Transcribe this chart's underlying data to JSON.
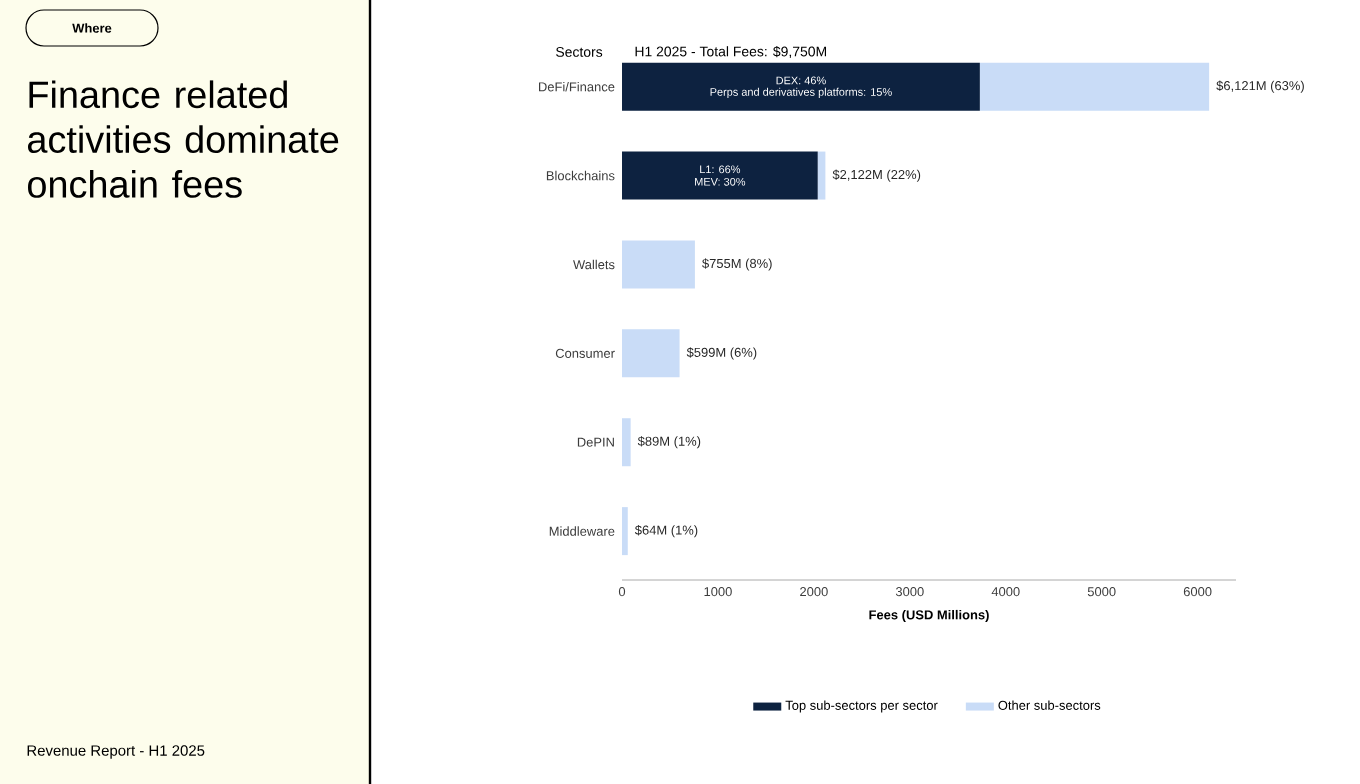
{
  "chart_data": {
    "type": "bar",
    "orientation": "horizontal",
    "stacked": true,
    "title": "Finance related activities dominate onchain fees",
    "subtitle": "H1 2025 - Total Fees: $9,750M",
    "ylabel": "Sectors",
    "xlabel": "Fees (USD Millions)",
    "categories": [
      "DeFi/Finance",
      "Blockchains",
      "Wallets",
      "Consumer",
      "DePIN",
      "Middleware"
    ],
    "series": [
      {
        "name": "Top sub-sectors per sector",
        "color": "#0d2240",
        "values": [
          3730,
          2040,
          0,
          0,
          0,
          0
        ]
      },
      {
        "name": "Other sub-sectors",
        "color": "#c9dcf7",
        "values": [
          2390,
          80,
          760,
          600,
          90,
          60
        ]
      }
    ],
    "totals": [
      "$6,121M (63%)",
      "$2,122M (22%)",
      "$755M (8%)",
      "$599M (6%)",
      "$89M (1%)",
      "$64M (1%)"
    ],
    "xlim": [
      0,
      6400
    ],
    "xticks": [
      0,
      1000,
      2000,
      3000,
      4000,
      5000,
      6000
    ],
    "grid": false,
    "legend": "bottom",
    "annotations": [
      "DEX: 46%",
      "Perps and derivatives platforms: 15%",
      "L1: 66%",
      "MEV: 30%",
      "Where",
      "Revenue Report - H1 2025"
    ]
  }
}
